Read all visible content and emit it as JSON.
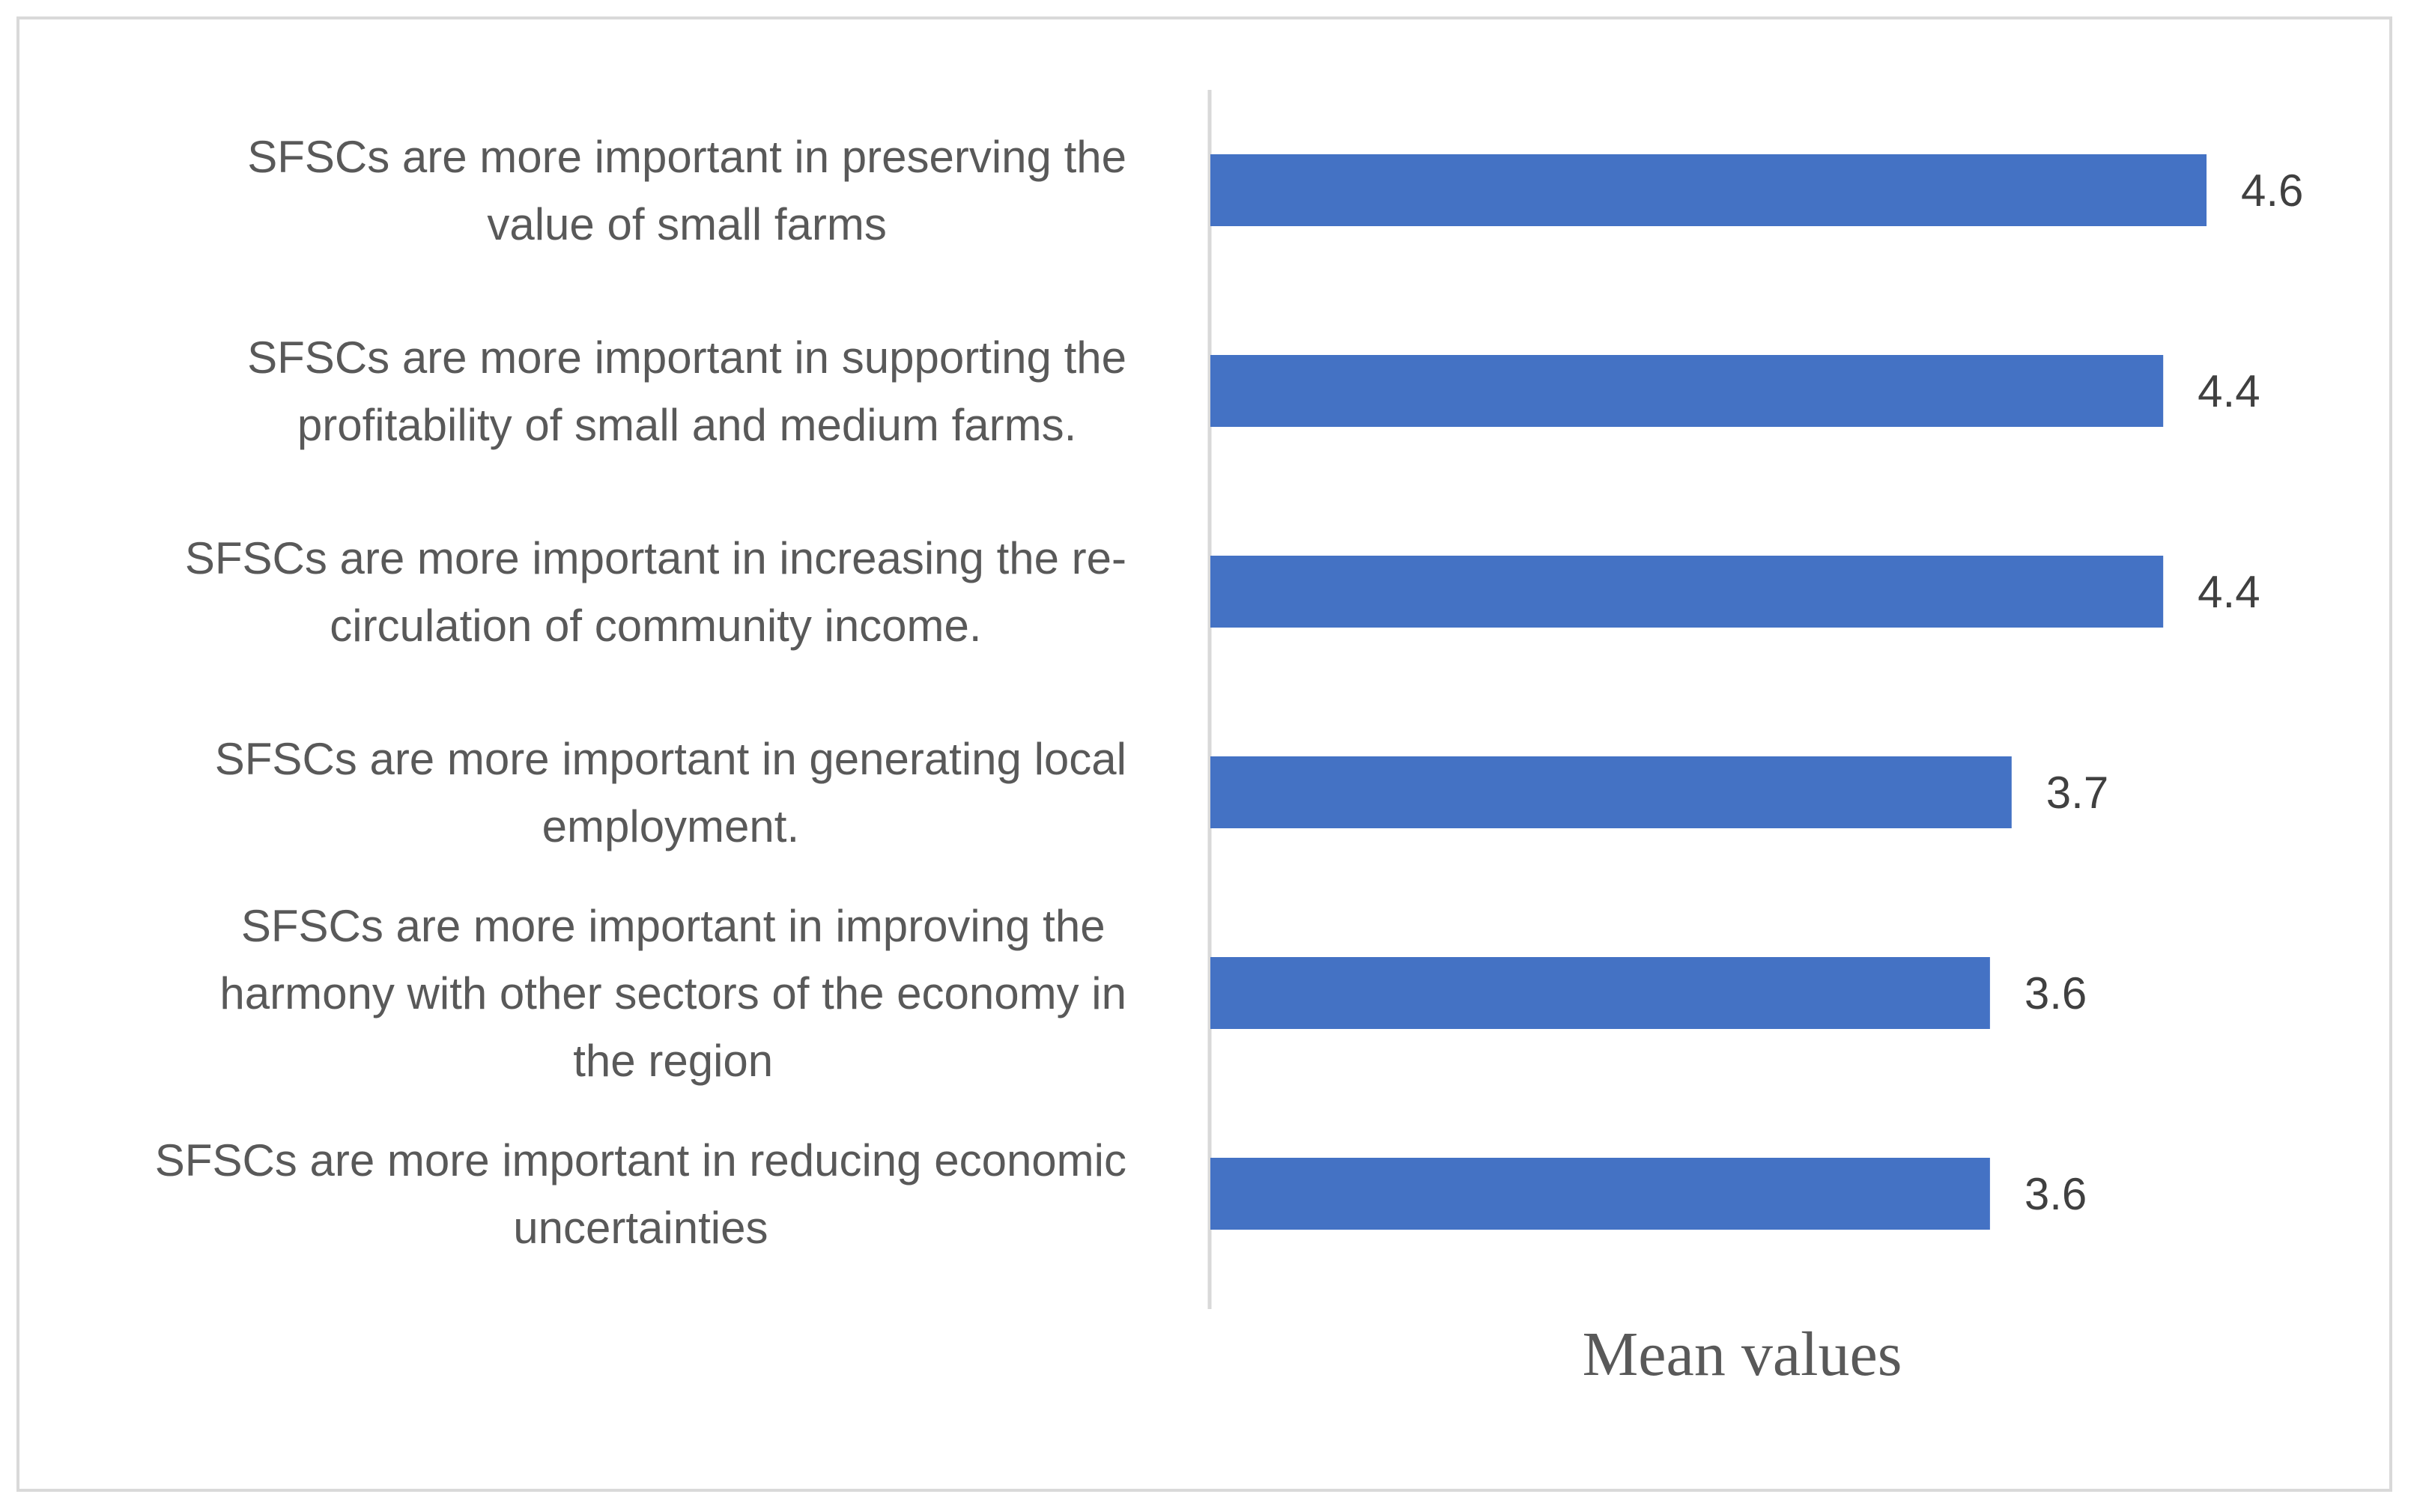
{
  "chart_data": {
    "type": "bar",
    "orientation": "horizontal",
    "categories": [
      [
        "SFSCs are more important in preserving the",
        "value of small farms"
      ],
      [
        "SFSCs are more important in supporting the",
        "profitability of small and medium farms."
      ],
      [
        "SFSCs are more important in increasing the re-",
        "circulation of community income."
      ],
      [
        "SFSCs are more important in generating local",
        "employment."
      ],
      [
        "SFSCs are more important in improving the",
        "harmony with other sectors of the economy in",
        "the region"
      ],
      [
        "SFSCs are more important in reducing economic",
        "uncertainties"
      ]
    ],
    "values": [
      4.6,
      4.4,
      4.4,
      3.7,
      3.6,
      3.6
    ],
    "value_labels": [
      "4.6",
      "4.4",
      "4.4",
      "3.7",
      "3.6",
      "3.6"
    ],
    "xlabel": "Mean values",
    "xlim": [
      0,
      5
    ],
    "grid": false,
    "legend": "none",
    "colors": {
      "bar": "#4472C4",
      "axis_line": "#d9d9d9",
      "frame": "#d9d9d9",
      "category_text": "#595959",
      "value_text": "#404040"
    }
  }
}
